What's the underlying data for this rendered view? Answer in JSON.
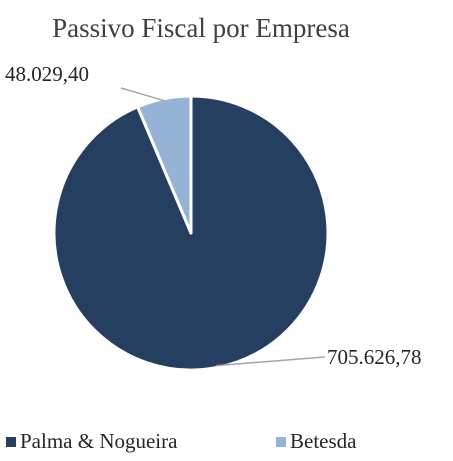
{
  "chart_data": {
    "type": "pie",
    "title": "Passivo Fiscal por Empresa",
    "labels": [
      "Palma & Nogueira",
      "Betesda"
    ],
    "values": [
      705626.78,
      48029.4
    ],
    "value_labels": [
      "705.626,78",
      "48.029,40"
    ],
    "colors": [
      "#243f60",
      "#95b3d7"
    ],
    "legend_position": "bottom"
  }
}
